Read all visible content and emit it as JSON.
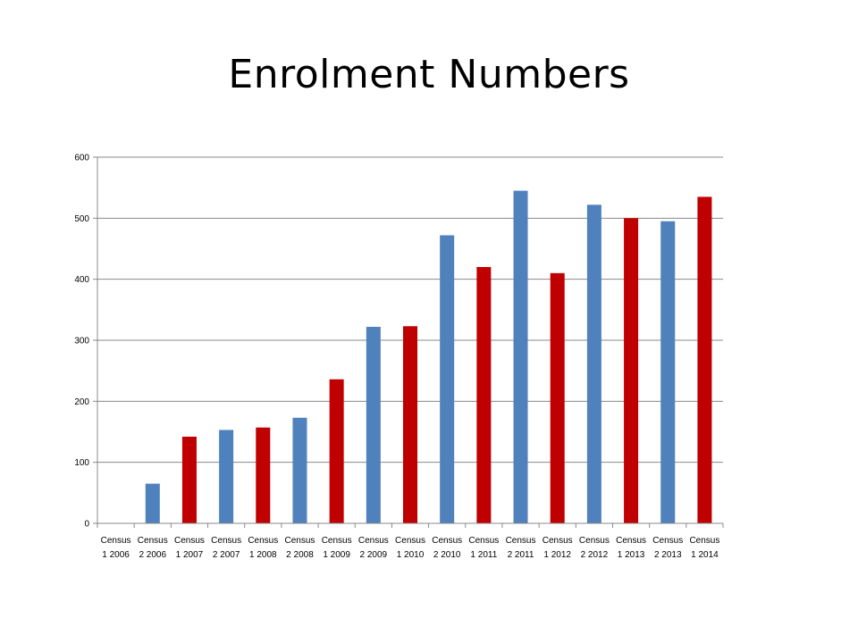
{
  "slide": {
    "title": "Enrolment Numbers"
  },
  "colors": {
    "census1": "#c00000",
    "census2": "#4f81bd",
    "gridline": "#888888",
    "axis": "#888888"
  },
  "chart_data": {
    "type": "bar",
    "title": "",
    "xlabel": "",
    "ylabel": "",
    "ylim": [
      0,
      600
    ],
    "yticks": [
      0,
      100,
      200,
      300,
      400,
      500,
      600
    ],
    "grid": true,
    "legend": "none",
    "categories": [
      [
        "Census",
        "1 2006"
      ],
      [
        "Census",
        "2 2006"
      ],
      [
        "Census",
        "1 2007"
      ],
      [
        "Census",
        "2 2007"
      ],
      [
        "Census",
        "1 2008"
      ],
      [
        "Census",
        "2 2008"
      ],
      [
        "Census",
        "1 2009"
      ],
      [
        "Census",
        "2 2009"
      ],
      [
        "Census",
        "1 2010"
      ],
      [
        "Census",
        "2 2010"
      ],
      [
        "Census",
        "1 2011"
      ],
      [
        "Census",
        "2 2011"
      ],
      [
        "Census",
        "1 2012"
      ],
      [
        "Census",
        "2 2012"
      ],
      [
        "Census",
        "1 2013"
      ],
      [
        "Census",
        "2 2013"
      ],
      [
        "Census",
        "1 2014"
      ]
    ],
    "values": [
      0,
      65,
      142,
      153,
      157,
      173,
      236,
      322,
      323,
      472,
      420,
      545,
      410,
      522,
      500,
      495,
      535
    ],
    "bar_colors": [
      "#c00000",
      "#4f81bd",
      "#c00000",
      "#4f81bd",
      "#c00000",
      "#4f81bd",
      "#c00000",
      "#4f81bd",
      "#c00000",
      "#4f81bd",
      "#c00000",
      "#4f81bd",
      "#c00000",
      "#4f81bd",
      "#c00000",
      "#4f81bd",
      "#c00000"
    ]
  }
}
